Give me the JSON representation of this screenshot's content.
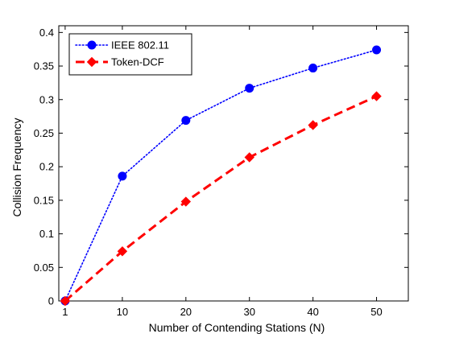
{
  "chart_data": {
    "type": "line",
    "title": "",
    "xlabel": "Number of Contending Stations (N)",
    "ylabel": "Collision Frequency",
    "x": [
      1,
      10,
      20,
      30,
      40,
      50
    ],
    "xlim": [
      0,
      55
    ],
    "ylim": [
      0,
      0.41
    ],
    "xticks": [
      1,
      10,
      20,
      30,
      40,
      50
    ],
    "xtick_labels": [
      "1",
      "10",
      "20",
      "30",
      "40",
      "50"
    ],
    "yticks": [
      0,
      0.05,
      0.1,
      0.15,
      0.2,
      0.25,
      0.3,
      0.35,
      0.4
    ],
    "ytick_labels": [
      "0",
      "0.05",
      "0.1",
      "0.15",
      "0.2",
      "0.25",
      "0.3",
      "0.35",
      "0.4"
    ],
    "grid": false,
    "legend_position": "top-left",
    "series": [
      {
        "name": "IEEE 802.11",
        "values": [
          0,
          0.186,
          0.269,
          0.317,
          0.347,
          0.374
        ],
        "color": "#0000ff",
        "line_style": "dotted",
        "marker": "circle"
      },
      {
        "name": "Token-DCF",
        "values": [
          0,
          0.074,
          0.148,
          0.214,
          0.262,
          0.305
        ],
        "color": "#ff0000",
        "line_style": "dashed",
        "marker": "diamond"
      }
    ]
  }
}
